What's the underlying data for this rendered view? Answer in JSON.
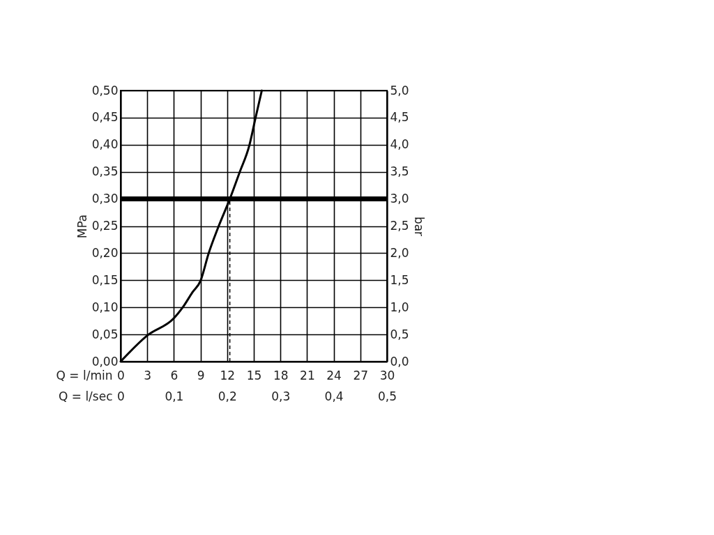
{
  "chart_data": {
    "type": "line",
    "xlabel": "Q = l/min",
    "x2label": "Q = l/sec",
    "ylabel": "MPa",
    "y2label": "bar",
    "x": [
      0,
      3,
      6,
      7.0,
      8.1,
      9,
      9.9,
      11.0,
      12.3,
      13.4,
      14.5,
      15.2,
      15.9
    ],
    "series": [
      {
        "color": "#000000",
        "values": [
          0,
          0.048,
          0.08,
          0.1,
          0.128,
          0.149,
          0.199,
          0.248,
          0.3,
          0.349,
          0.399,
          0.45,
          0.5
        ]
      }
    ],
    "xlim": [
      0,
      30
    ],
    "xticks": [
      0,
      3,
      6,
      9,
      12,
      15,
      18,
      21,
      24,
      27,
      30
    ],
    "x2lim": [
      0,
      0.5
    ],
    "x2ticks": [
      0,
      {
        "value": 0.1,
        "label": "0,1"
      },
      {
        "value": 0.2,
        "label": "0,2"
      },
      {
        "value": 0.3,
        "label": "0,3"
      },
      {
        "value": 0.4,
        "label": "0,4"
      },
      {
        "value": 0.5,
        "label": "0,5"
      }
    ],
    "ylim": [
      0,
      0.5
    ],
    "yticks": [
      {
        "value": 0,
        "label": "0,00"
      },
      {
        "value": 0.05,
        "label": "0,05"
      },
      {
        "value": 0.1,
        "label": "0,10"
      },
      {
        "value": 0.15,
        "label": "0,15"
      },
      {
        "value": 0.2,
        "label": "0,20"
      },
      {
        "value": 0.25,
        "label": "0,25"
      },
      {
        "value": 0.3,
        "label": "0,30"
      },
      {
        "value": 0.35,
        "label": "0,35"
      },
      {
        "value": 0.4,
        "label": "0,40"
      },
      {
        "value": 0.45,
        "label": "0,45"
      },
      {
        "value": 0.5,
        "label": "0,50"
      }
    ],
    "y2lim": [
      0,
      5
    ],
    "y2ticks": [
      {
        "value": 0,
        "label": "0,0"
      },
      {
        "value": 0.5,
        "label": "0,5"
      },
      {
        "value": 1,
        "label": "1,0"
      },
      {
        "value": 1.5,
        "label": "1,5"
      },
      {
        "value": 2,
        "label": "2,0"
      },
      {
        "value": 2.5,
        "label": "2,5"
      },
      {
        "value": 3,
        "label": "3,0"
      },
      {
        "value": 3.5,
        "label": "3,5"
      },
      {
        "value": 4,
        "label": "4,0"
      },
      {
        "value": 4.5,
        "label": "4,5"
      },
      {
        "value": 5,
        "label": "5,0"
      }
    ],
    "ref_lines": [
      {
        "axis": "y",
        "value": 0.3,
        "color": "#000000",
        "line_style": "solid"
      },
      {
        "axis": "x",
        "value": 12.3,
        "color": "#000000",
        "line_style": "dashed"
      }
    ],
    "grid": true,
    "marker": "none",
    "line_style": "solid"
  }
}
